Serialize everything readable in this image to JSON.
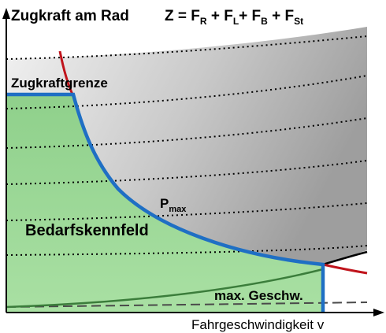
{
  "y_axis_label": "Zugkraft am Rad",
  "equation": {
    "lhs": "Z = F",
    "terms": [
      {
        "sub": "R",
        "sep": " + F"
      },
      {
        "sub": "L",
        "sep": "+ F"
      },
      {
        "sub": "B",
        "sep": " + F"
      },
      {
        "sub": "St",
        "sep": ""
      }
    ]
  },
  "labels": {
    "traction_limit": "Zugkraftgrenze",
    "power_main": "P",
    "power_sub": "max",
    "demand_field": "Bedarfskennfeld",
    "max_speed": "max. Geschw.",
    "x_axis": "Fahrgeschwindigkeit v"
  },
  "colors": {
    "demand_fill": "#9ed99a",
    "boundary": "#1f6fc4",
    "hyperbola_red": "#c0141c",
    "resistance_green": "#3b7d3b",
    "gray_region": "#b4b4b4"
  }
}
